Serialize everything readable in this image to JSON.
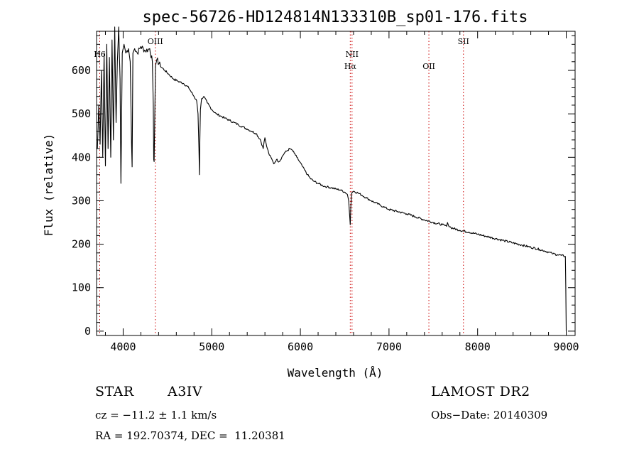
{
  "chart_data": {
    "type": "line",
    "title": "spec-56726-HD124814N133310B_sp01-176.fits",
    "xlabel": "Wavelength (Å)",
    "ylabel": "Flux (relative)",
    "xlim": [
      3700,
      9100
    ],
    "ylim": [
      -10,
      690
    ],
    "xticks": [
      4000,
      5000,
      6000,
      7000,
      8000,
      9000
    ],
    "yticks": [
      0,
      100,
      200,
      300,
      400,
      500,
      600
    ],
    "grid": false,
    "line_color": "#000000",
    "marker_color": "#cc0000",
    "series": [
      {
        "x": [
          3710,
          3725,
          3740,
          3755,
          3770,
          3785,
          3800,
          3815,
          3830,
          3845,
          3860,
          3875,
          3890,
          3905,
          3920,
          3935,
          3950,
          3965,
          3975,
          3990,
          4010,
          4030,
          4060,
          4080,
          4095,
          4101,
          4110,
          4130,
          4160,
          4200,
          4250,
          4300,
          4330,
          4340,
          4345,
          4350,
          4355,
          4365,
          4380,
          4420,
          4470,
          4520,
          4570,
          4620,
          4680,
          4740,
          4800,
          4830,
          4845,
          4855,
          4861,
          4866,
          4872,
          4885,
          4910,
          4950,
          5000,
          5050,
          5100,
          5150,
          5200,
          5250,
          5300,
          5350,
          5400,
          5450,
          5500,
          5550,
          5580,
          5590,
          5600,
          5620,
          5650,
          5680,
          5700,
          5730,
          5760,
          5790,
          5820,
          5850,
          5880,
          5900,
          5930,
          5960,
          5990,
          6020,
          6050,
          6080,
          6110,
          6150,
          6200,
          6250,
          6300,
          6350,
          6400,
          6450,
          6500,
          6530,
          6545,
          6555,
          6563,
          6570,
          6580,
          6600,
          6650,
          6700,
          6750,
          6800,
          6850,
          6900,
          6950,
          7000,
          7100,
          7200,
          7300,
          7400,
          7500,
          7600,
          7650,
          7660,
          7670,
          7700,
          7800,
          7900,
          8000,
          8100,
          8200,
          8300,
          8400,
          8500,
          8600,
          8700,
          8750,
          8800,
          8850,
          8900,
          8950,
          8990,
          8995,
          9000
        ],
        "y": [
          420,
          520,
          430,
          600,
          400,
          640,
          380,
          660,
          420,
          630,
          400,
          670,
          440,
          700,
          480,
          620,
          700,
          580,
          340,
          640,
          660,
          640,
          650,
          620,
          430,
          378,
          640,
          650,
          640,
          655,
          645,
          650,
          620,
          520,
          395,
          390,
          470,
          610,
          625,
          610,
          600,
          590,
          580,
          575,
          570,
          560,
          540,
          530,
          500,
          420,
          360,
          440,
          510,
          535,
          540,
          525,
          510,
          500,
          495,
          490,
          485,
          480,
          475,
          470,
          465,
          460,
          455,
          440,
          420,
          435,
          445,
          425,
          405,
          395,
          385,
          395,
          390,
          400,
          410,
          415,
          420,
          418,
          410,
          400,
          390,
          380,
          370,
          360,
          352,
          345,
          340,
          335,
          332,
          330,
          327,
          325,
          320,
          315,
          300,
          270,
          245,
          290,
          318,
          322,
          318,
          312,
          306,
          300,
          295,
          290,
          285,
          280,
          275,
          270,
          263,
          256,
          250,
          245,
          241,
          250,
          244,
          238,
          232,
          228,
          223,
          218,
          213,
          208,
          203,
          198,
          193,
          188,
          185,
          182,
          178,
          176,
          174,
          172,
          100,
          0
        ]
      }
    ],
    "line_markers": [
      {
        "x": 3736,
        "label": "H6",
        "row": 1
      },
      {
        "x": 4363,
        "label": "OIII",
        "row": 0
      },
      {
        "x": 6563,
        "label": "Hα",
        "row": 2
      },
      {
        "x": 6583,
        "label": "NII",
        "row": 1
      },
      {
        "x": 7450,
        "label": "OII",
        "row": 2
      },
      {
        "x": 7840,
        "label": "SII",
        "row": 0
      }
    ]
  },
  "info": {
    "object_class": "STAR",
    "subclass": "A3IV",
    "cz": "cz = −11.2 ± 1.1 km/s",
    "coords": "RA = 192.70374, DEC =  11.20381",
    "survey": "LAMOST DR2",
    "obs_date": "Obs−Date: 20140309"
  }
}
